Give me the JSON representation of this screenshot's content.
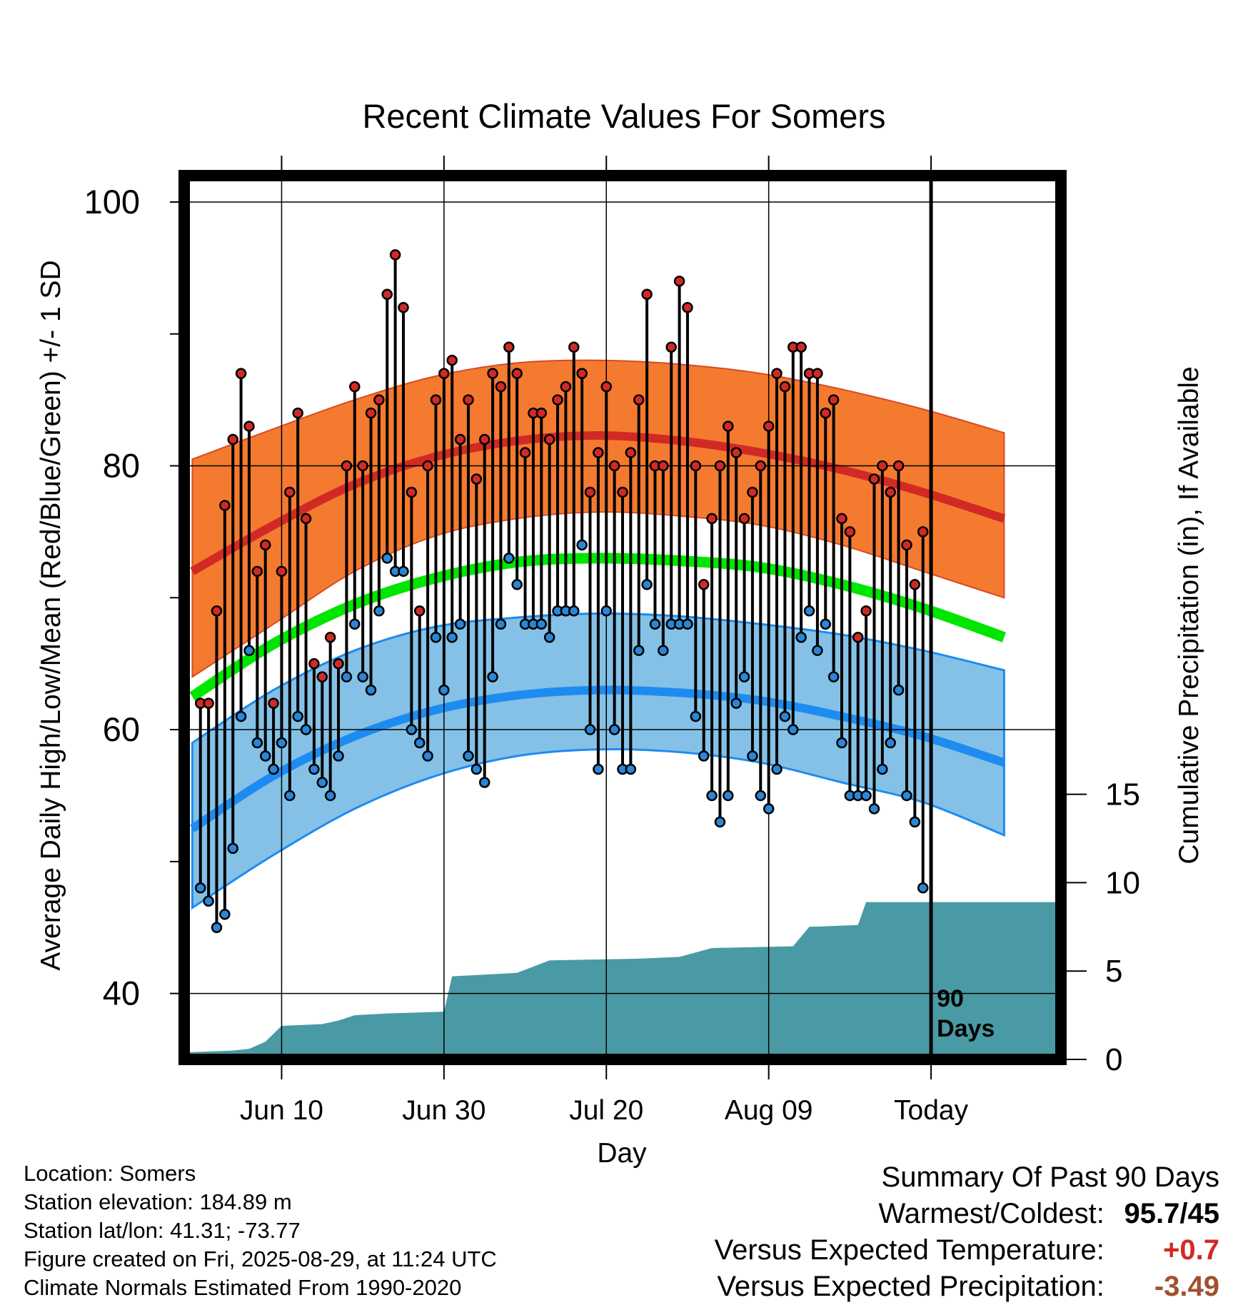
{
  "chart_data": {
    "type": "line",
    "title": "Recent Climate Values For Somers",
    "xlabel": "Day",
    "ylabel": "Average Daily High/Low/Mean (Red/Blue/Green) +/- 1 SD",
    "y2label": "Cumulative Precipitation (in), If Available",
    "ylim": [
      35,
      102
    ],
    "y2lim": [
      0,
      50
    ],
    "xlim": [
      "2025-05-29",
      "2025-09-14"
    ],
    "x_tick_labels": [
      {
        "date": "2025-06-10",
        "label": "Jun 10"
      },
      {
        "date": "2025-06-30",
        "label": "Jun 30"
      },
      {
        "date": "2025-07-20",
        "label": "Jul 20"
      },
      {
        "date": "2025-08-09",
        "label": "Aug 09"
      },
      {
        "date": "2025-08-29",
        "label": "Today"
      }
    ],
    "y_ticks": [
      40,
      60,
      80,
      100
    ],
    "y2_ticks": [
      0,
      5,
      10,
      15
    ],
    "grid": true,
    "today_marker": {
      "date": "2025-08-29",
      "label_line1": "90",
      "label_line2": "Days"
    },
    "colors": {
      "high_band": "#f47a30",
      "high_line": "#d12a25",
      "low_band": "#85c1e6",
      "low_line": "#1d8cf0",
      "mean_line": "#00e600",
      "precip": "#4a9aa5",
      "high_dot": "#d12a25",
      "low_dot": "#2a86d6"
    },
    "normals": {
      "dates": [
        "2025-05-30",
        "2025-06-09",
        "2025-06-19",
        "2025-06-29",
        "2025-07-09",
        "2025-07-19",
        "2025-07-29",
        "2025-08-08",
        "2025-08-18",
        "2025-08-28",
        "2025-09-07"
      ],
      "high_mean": [
        72.0,
        75.5,
        78.6,
        80.7,
        81.9,
        82.3,
        81.9,
        81.0,
        79.7,
        78.0,
        76.0
      ],
      "high_upper": [
        80.5,
        82.8,
        85.0,
        86.8,
        87.8,
        88.0,
        87.7,
        87.0,
        85.8,
        84.3,
        82.5
      ],
      "high_lower": [
        64.0,
        68.0,
        72.0,
        74.7,
        76.0,
        76.5,
        76.2,
        75.5,
        74.0,
        72.0,
        70.0
      ],
      "mean": [
        62.5,
        66.5,
        69.5,
        71.5,
        72.7,
        73.0,
        72.8,
        72.3,
        71.0,
        69.2,
        67.0
      ],
      "low_mean": [
        52.5,
        56.5,
        59.5,
        61.5,
        62.6,
        63.0,
        62.8,
        62.2,
        61.0,
        59.5,
        57.5
      ],
      "low_upper": [
        59.0,
        63.0,
        66.0,
        67.8,
        68.5,
        68.8,
        68.6,
        68.0,
        67.2,
        66.0,
        64.5
      ],
      "low_lower": [
        46.5,
        50.5,
        54.0,
        56.5,
        58.0,
        58.5,
        58.3,
        57.5,
        56.0,
        54.5,
        52.0
      ]
    },
    "days": {
      "start_date": "2025-05-31",
      "high": [
        62,
        62,
        69,
        77,
        82,
        87,
        83,
        72,
        74,
        62,
        72,
        78,
        84,
        76,
        65,
        64,
        67,
        65,
        80,
        86,
        80,
        84,
        85,
        93,
        96,
        92,
        78,
        69,
        80,
        85,
        87,
        88,
        82,
        85,
        79,
        82,
        87,
        86,
        89,
        87,
        81,
        84,
        84,
        82,
        85,
        86,
        89,
        87,
        78,
        81,
        86,
        80,
        78,
        81,
        85,
        93,
        80,
        80,
        89,
        94,
        92,
        80,
        71,
        76,
        80,
        83,
        81,
        76,
        78,
        80,
        83,
        87,
        86,
        89,
        89,
        87,
        87,
        84,
        85,
        76,
        75,
        67,
        69,
        79,
        80,
        78,
        80,
        74,
        71,
        75
      ],
      "low": [
        48,
        47,
        45,
        46,
        51,
        61,
        66,
        59,
        58,
        57,
        59,
        55,
        61,
        60,
        57,
        56,
        55,
        58,
        64,
        68,
        64,
        63,
        69,
        73,
        72,
        72,
        60,
        59,
        58,
        67,
        63,
        67,
        68,
        58,
        57,
        56,
        64,
        68,
        73,
        71,
        68,
        68,
        68,
        67,
        69,
        69,
        69,
        74,
        60,
        57,
        69,
        60,
        57,
        57,
        66,
        71,
        68,
        66,
        68,
        68,
        68,
        61,
        58,
        55,
        53,
        55,
        62,
        64,
        58,
        55,
        54,
        57,
        61,
        60,
        67,
        69,
        66,
        68,
        64,
        59,
        55,
        55,
        55,
        54,
        57,
        59,
        63,
        55,
        53,
        48
      ]
    },
    "precip_cumulative": [
      [
        "2025-05-29",
        0.4
      ],
      [
        "2025-06-04",
        0.5
      ],
      [
        "2025-06-06",
        0.6
      ],
      [
        "2025-06-08",
        1.0
      ],
      [
        "2025-06-10",
        1.9
      ],
      [
        "2025-06-15",
        2.0
      ],
      [
        "2025-06-17",
        2.2
      ],
      [
        "2025-06-19",
        2.5
      ],
      [
        "2025-06-23",
        2.6
      ],
      [
        "2025-06-30",
        2.7
      ],
      [
        "2025-07-01",
        4.7
      ],
      [
        "2025-07-05",
        4.8
      ],
      [
        "2025-07-09",
        4.9
      ],
      [
        "2025-07-13",
        5.6
      ],
      [
        "2025-07-24",
        5.7
      ],
      [
        "2025-07-29",
        5.8
      ],
      [
        "2025-08-02",
        6.3
      ],
      [
        "2025-08-12",
        6.4
      ],
      [
        "2025-08-14",
        7.5
      ],
      [
        "2025-08-20",
        7.6
      ],
      [
        "2025-08-21",
        8.9
      ],
      [
        "2025-09-14",
        8.9
      ]
    ]
  },
  "footer": {
    "location": "Location: Somers",
    "elevation": "Station elevation: 184.89 m",
    "latlon": "Station lat/lon: 41.31; -73.77",
    "created": "Figure created on Fri, 2025-08-29, at 11:24 UTC",
    "normals": "Climate Normals Estimated From 1990-2020"
  },
  "summary": {
    "title": "Summary Of Past 90 Days",
    "warmest_coldest_label": "Warmest/Coldest:",
    "warmest_coldest_value": "95.7/45",
    "temp_label": "Versus Expected Temperature:",
    "temp_value": "+0.7",
    "temp_color": "#d12a25",
    "precip_label": "Versus Expected Precipitation:",
    "precip_value": "-3.49",
    "precip_color": "#a0522d"
  }
}
